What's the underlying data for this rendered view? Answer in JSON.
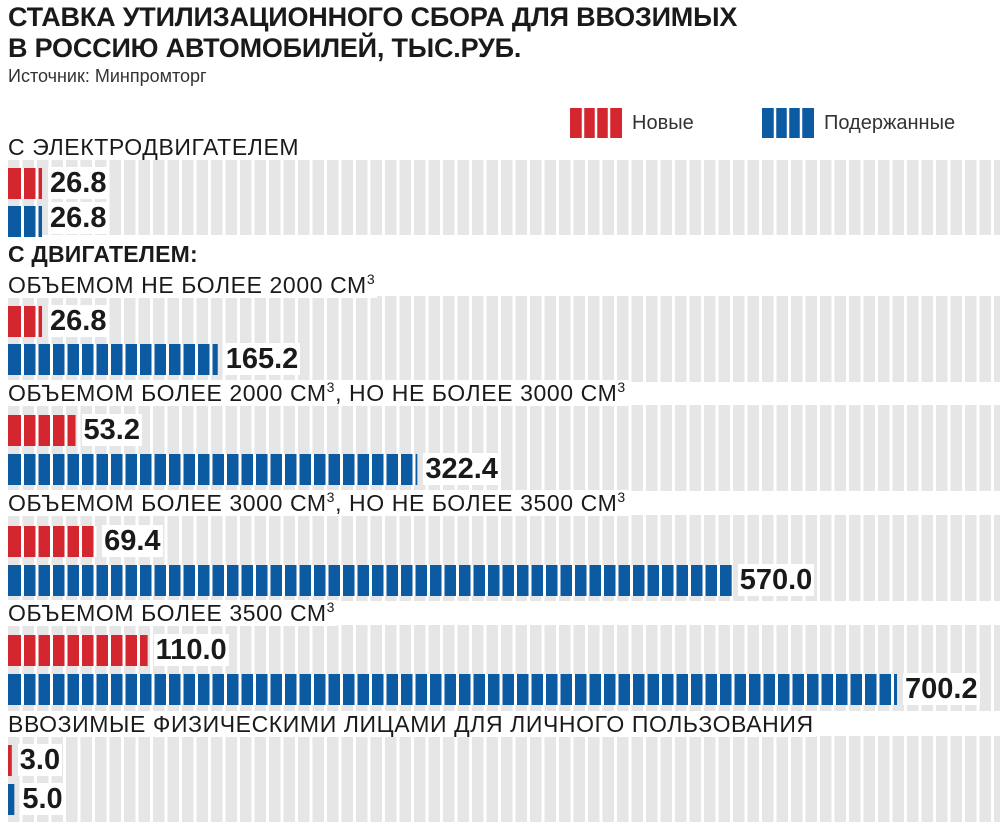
{
  "title_lines": [
    "СТАВКА УТИЛИЗАЦИОННОГО СБОРА ДЛЯ ВВОЗИМЫХ",
    "В РОССИЮ АВТОМОБИЛЕЙ, ТЫС.РУБ."
  ],
  "source": "Источник: Минпромторг",
  "colors": {
    "new": "#d4262e",
    "used": "#0b5aa2",
    "background_bands": "#e6e6e6"
  },
  "chart_data": {
    "type": "bar",
    "orientation": "horizontal",
    "title": "СТАВКА УТИЛИЗАЦИОННОГО СБОРА ДЛЯ ВВОЗИМЫХ В РОССИЮ АВТОМОБИЛЕЙ, ТЫС.РУБ.",
    "source": "Источник: Минпромторг",
    "legend": {
      "placement": "top-right",
      "entries": [
        "Новые",
        "Подержанные"
      ]
    },
    "series": [
      {
        "name": "Новые",
        "color": "#d4262e",
        "values": [
          26.8,
          26.8,
          53.2,
          69.4,
          110.0,
          3.0
        ]
      },
      {
        "name": "Подержанные",
        "color": "#0b5aa2",
        "values": [
          26.8,
          165.2,
          322.4,
          570.0,
          700.2,
          5.0
        ]
      }
    ],
    "value_labels": {
      "new": [
        "26.8",
        "26.8",
        "53.2",
        "69.4",
        "110.0",
        "3.0"
      ],
      "used": [
        "26.8",
        "165.2",
        "322.4",
        "570.0",
        "700.2",
        "5.0"
      ]
    },
    "categories": [
      {
        "label": "С ЭЛЕКТРОДВИГАТЕЛЕМ",
        "sup": "",
        "mid": "",
        "sup2": ""
      },
      {
        "label": "ОБЪЕМОМ НЕ БОЛЕЕ 2000 СМ",
        "sup": "3",
        "mid": "",
        "sup2": ""
      },
      {
        "label": "ОБЪЕМОМ БОЛЕЕ 2000 СМ",
        "sup": "3",
        "mid": ", НО НЕ БОЛЕЕ 3000 СМ",
        "sup2": "3"
      },
      {
        "label": "ОБЪЕМОМ БОЛЕЕ 3000 СМ",
        "sup": "3",
        "mid": ", НО НЕ БОЛЕЕ 3500 СМ",
        "sup2": "3"
      },
      {
        "label": "ОБЪЕМОМ БОЛЕЕ 3500 СМ",
        "sup": "3",
        "mid": "",
        "sup2": ""
      },
      {
        "label": "ВВОЗИМЫЕ ФИЗИЧЕСКИМИ ЛИЦАМИ ДЛЯ ЛИЧНОГО ПОЛЬЗОВАНИЯ",
        "sup": "",
        "mid": "",
        "sup2": ""
      }
    ],
    "section_heading": "С ДВИГАТЕЛЕМ:",
    "xlim": [
      0,
      700.2
    ],
    "grid": "segmented background bands"
  }
}
